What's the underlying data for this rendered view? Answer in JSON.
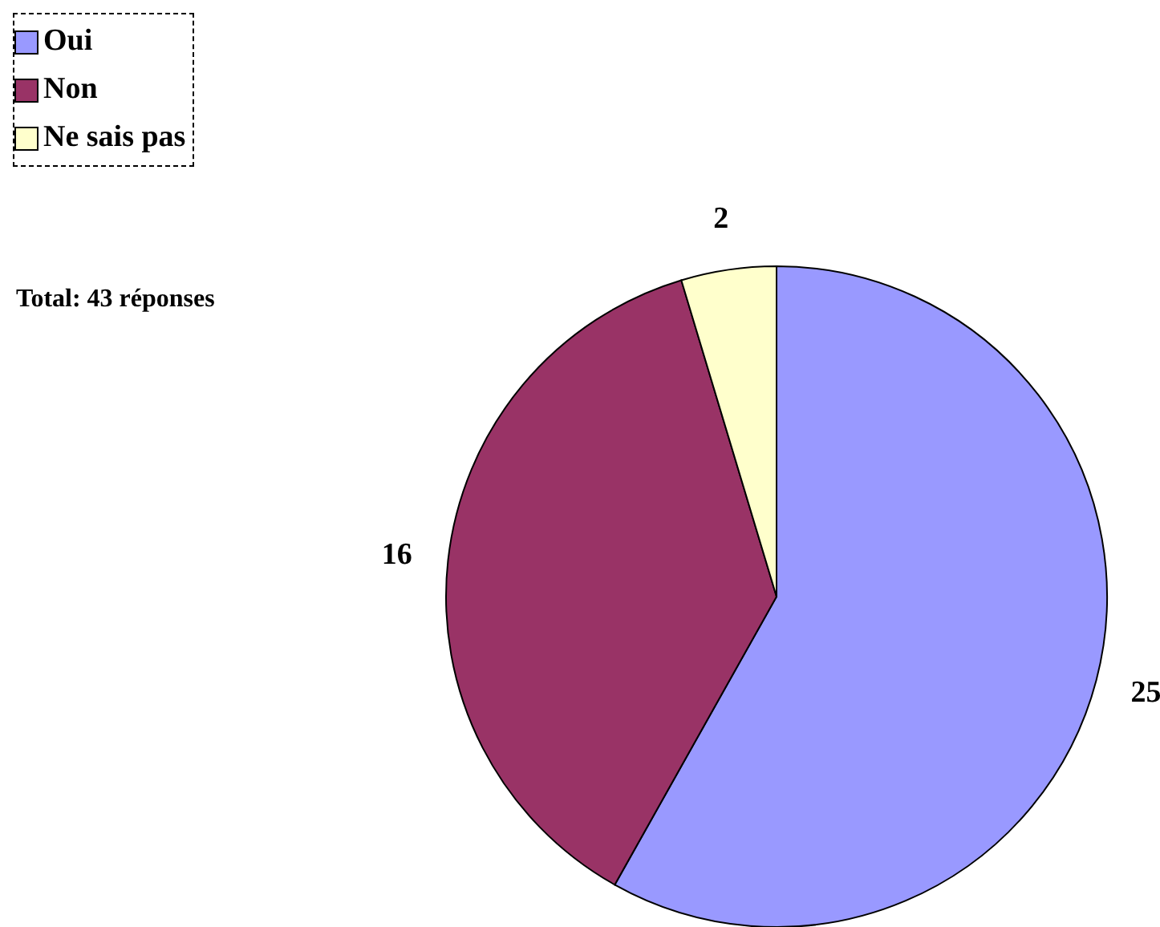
{
  "chart_data": {
    "type": "pie",
    "categories": [
      "Oui",
      "Non",
      "Ne sais pas"
    ],
    "values": [
      25,
      16,
      2
    ],
    "colors": [
      "#9999ff",
      "#993366",
      "#ffffcc"
    ],
    "data_labels": true,
    "legend": "top left",
    "annotations": [
      "Total: 43 réponses"
    ]
  }
}
